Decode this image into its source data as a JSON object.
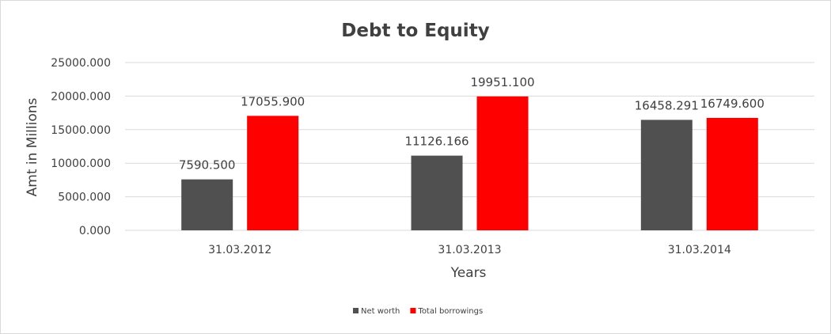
{
  "chart_data": {
    "type": "bar",
    "title": "Debt to Equity",
    "xlabel": "Years",
    "ylabel": "Amt in Millions",
    "categories": [
      "31.03.2012",
      "31.03.2013",
      "31.03.2014"
    ],
    "series": [
      {
        "name": "Net worth",
        "color": "#505050",
        "values": [
          7590.5,
          11126.166,
          16458.291
        ],
        "labels": [
          "7590.500",
          "11126.166",
          "16458.291"
        ]
      },
      {
        "name": "Total borrowings",
        "color": "#ff0000",
        "values": [
          17055.9,
          19951.1,
          16749.6
        ],
        "labels": [
          "17055.900",
          "19951.100",
          "16749.600"
        ]
      }
    ],
    "ylim": [
      0,
      25000
    ],
    "yticks": [
      0,
      5000,
      10000,
      15000,
      20000,
      25000
    ],
    "ytick_labels": [
      "0.000",
      "5000.000",
      "10000.000",
      "15000.000",
      "20000.000",
      "25000.000"
    ],
    "grid": true,
    "legend_position": "bottom"
  }
}
